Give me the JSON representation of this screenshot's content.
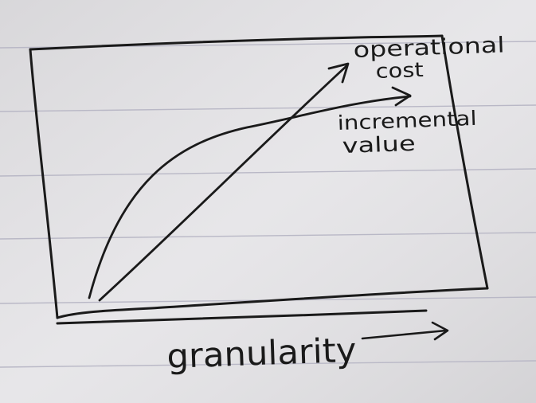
{
  "image": {
    "description_kind": "photo of a hand-drawn sketch on lined notebook paper",
    "colors": {
      "paper": "#e6e5e8",
      "ruling": "#b9b8c6",
      "ink": "#1a1a1a"
    }
  },
  "labels": {
    "curve_1": [
      "operational",
      "cost"
    ],
    "curve_2": [
      "incremental",
      "value"
    ],
    "x_axis": "granularity"
  }
}
